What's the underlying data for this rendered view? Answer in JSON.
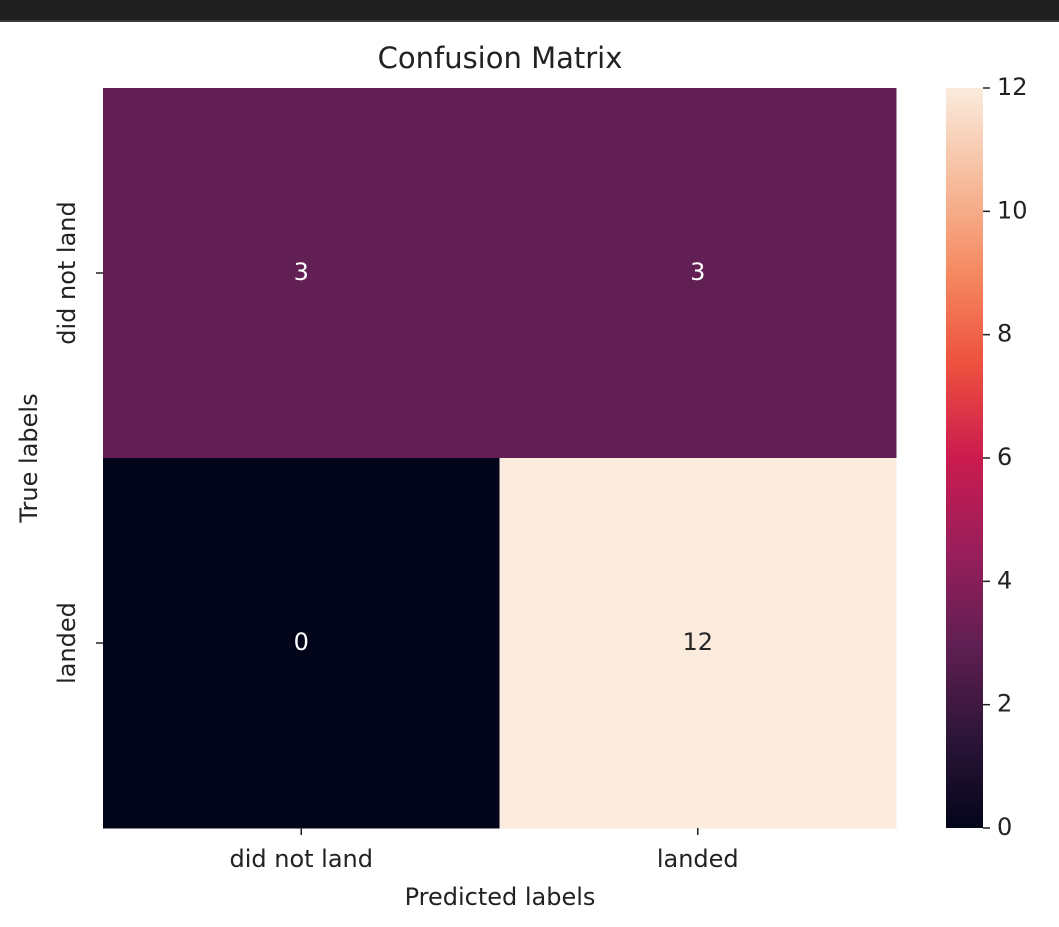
{
  "chart_data": {
    "type": "heatmap",
    "title": "Confusion Matrix",
    "x_label": "Predicted labels",
    "y_label": "True labels",
    "x_categories": [
      "did not land",
      "landed"
    ],
    "y_categories": [
      "did not land",
      "landed"
    ],
    "values": [
      [
        3,
        3
      ],
      [
        0,
        12
      ]
    ],
    "clim": [
      0,
      12
    ],
    "cticks": [
      0,
      2,
      4,
      6,
      8,
      10,
      12
    ],
    "colormap": [
      "#03051a",
      "#2e1539",
      "#611f53",
      "#9a1e5b",
      "#cb1b4f",
      "#ed503e",
      "#f58960",
      "#f6bc9c",
      "#faebdd"
    ]
  }
}
